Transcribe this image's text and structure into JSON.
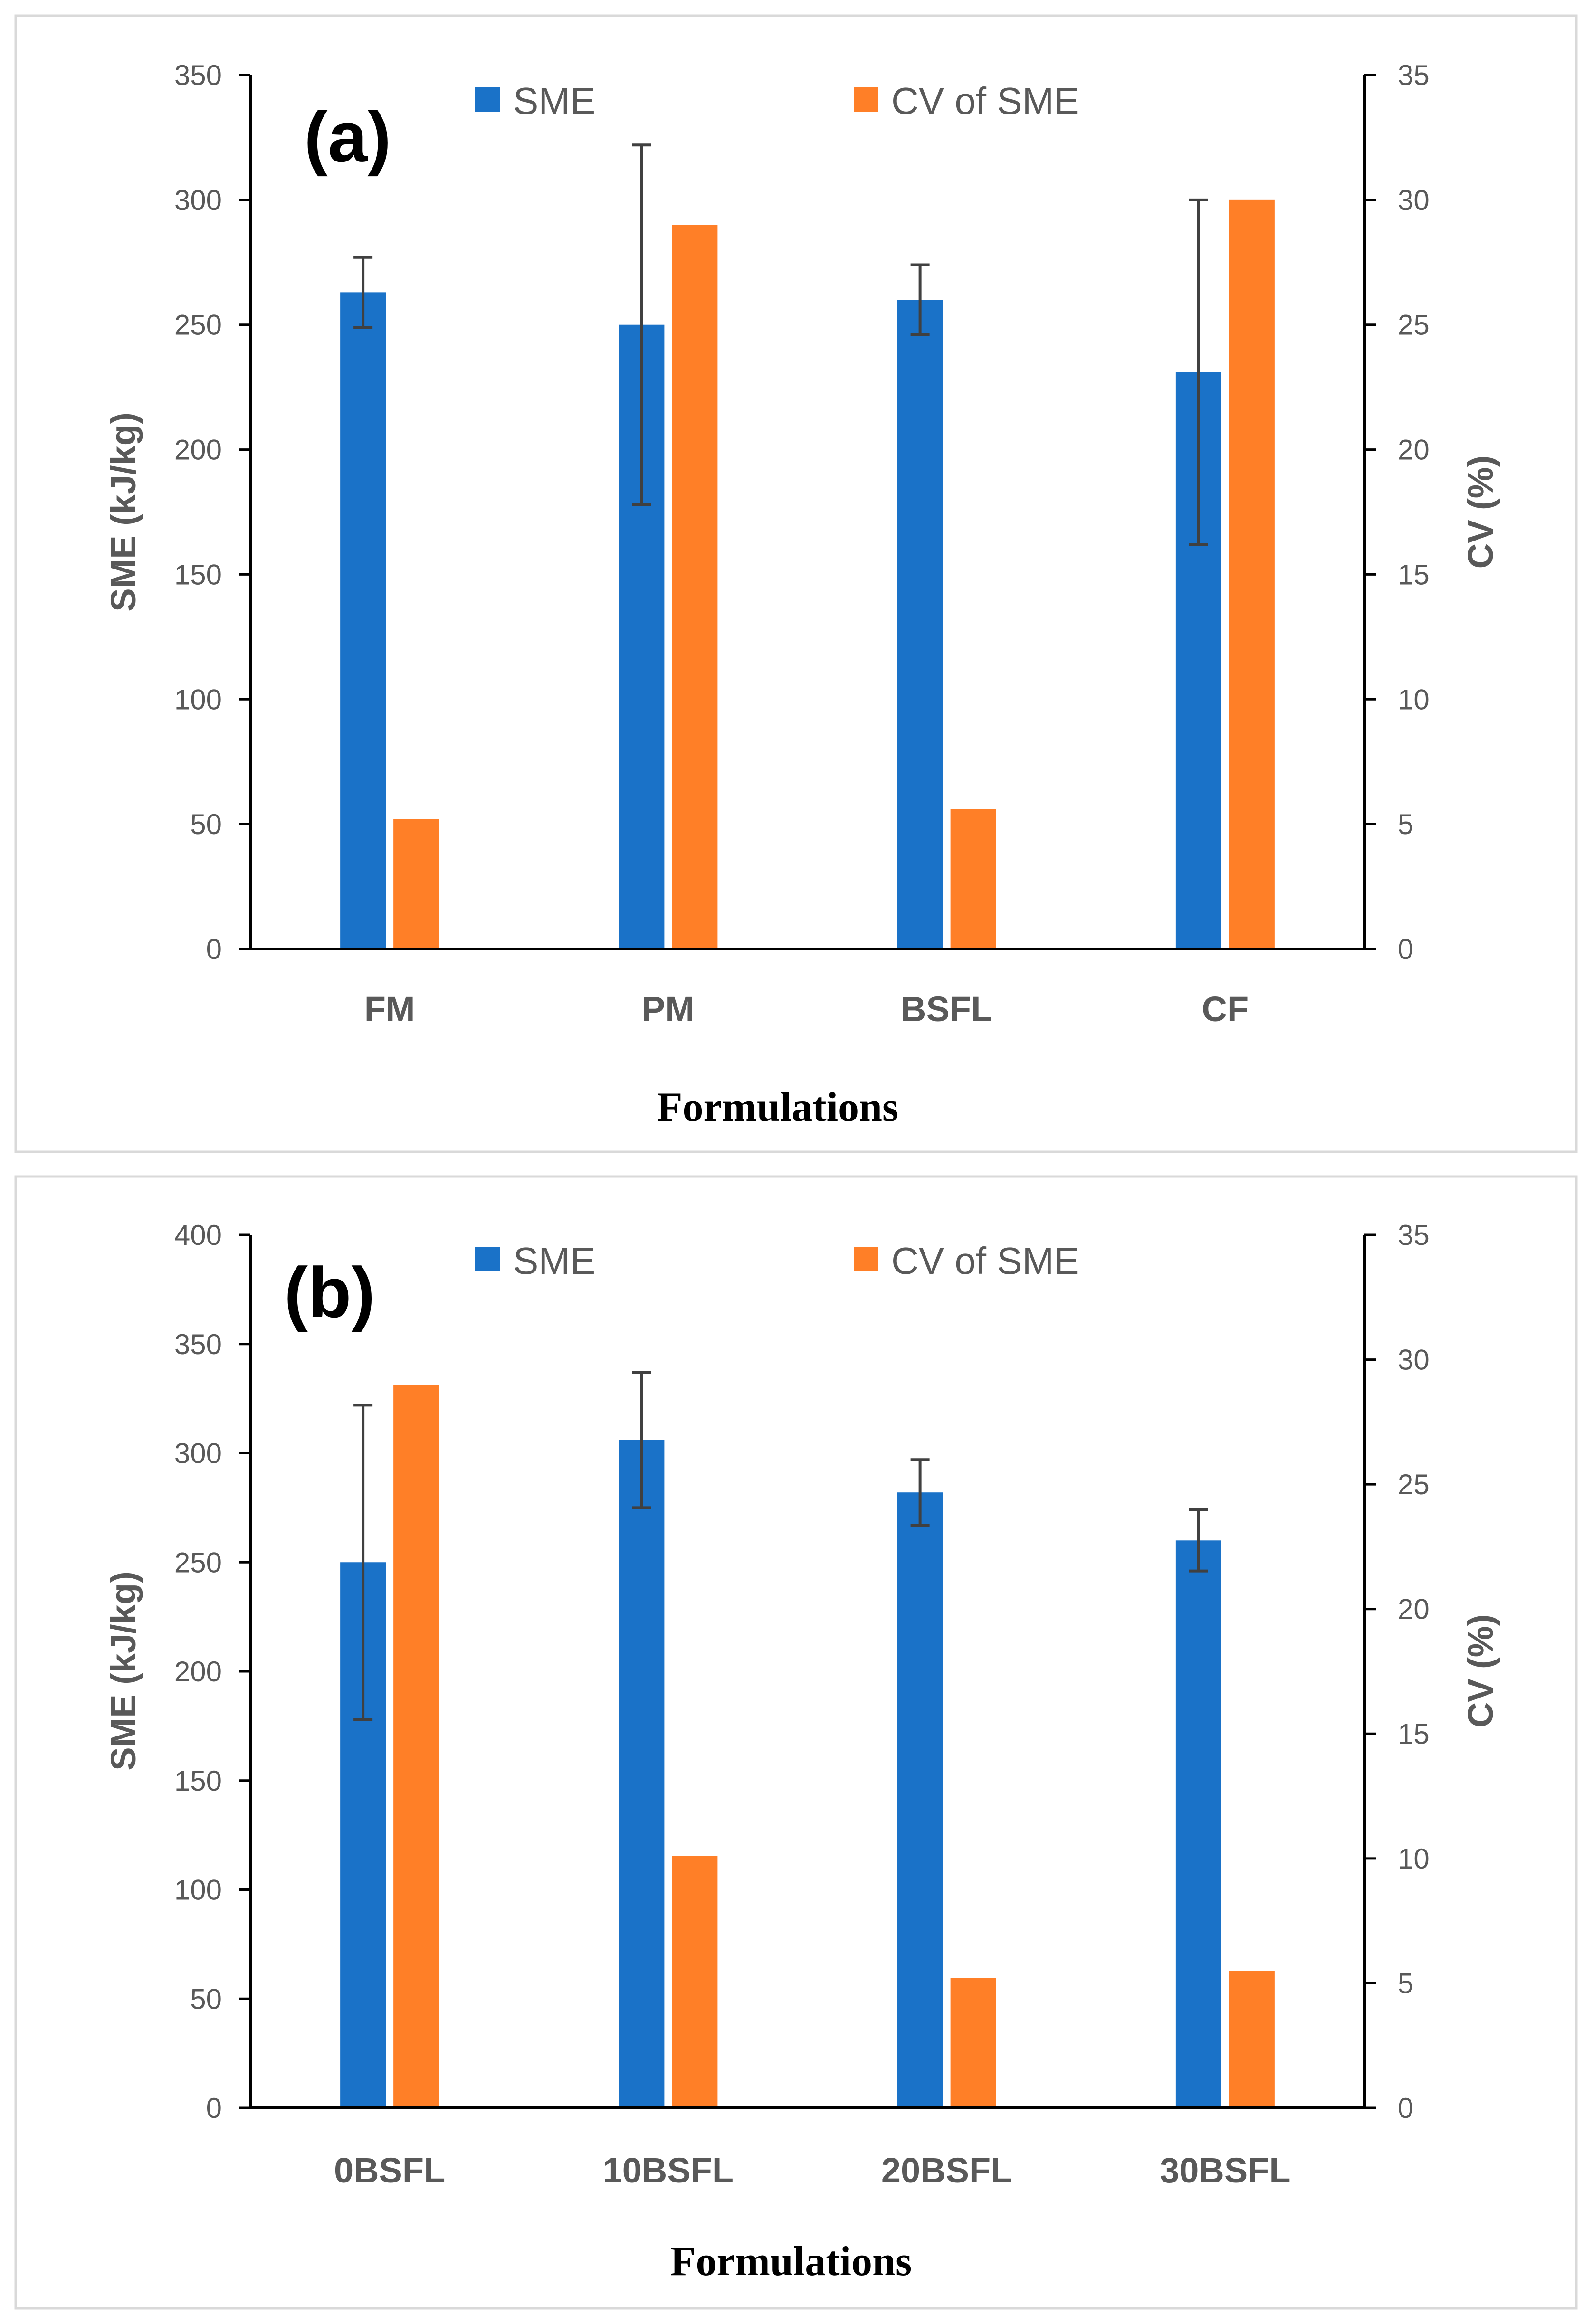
{
  "colors": {
    "sme": "#1A72C8",
    "cv": "#FF7F27",
    "axis": "#000000",
    "text": "#595959",
    "error_bar": "#404040",
    "panel_border": "#d9d9d9"
  },
  "chart_data": [
    {
      "type": "bar",
      "panel_label": "(a)",
      "categories": [
        "FM",
        "PM",
        "BSFL",
        "CF"
      ],
      "xlabel": "Formulations",
      "ylabel": "SME (kJ/kg)",
      "y2label": "CV (%)",
      "ylim": [
        0,
        350
      ],
      "y_ticks": [
        0,
        50,
        100,
        150,
        200,
        250,
        300,
        350
      ],
      "y2lim": [
        0,
        35
      ],
      "y2_ticks": [
        0,
        5,
        10,
        15,
        20,
        25,
        30,
        35
      ],
      "legend_position": "top",
      "series": [
        {
          "name": "SME",
          "axis": "left",
          "values": [
            263,
            250,
            260,
            231
          ],
          "error": [
            14,
            72,
            14,
            69
          ]
        },
        {
          "name": "CV of SME",
          "axis": "right",
          "values": [
            5.2,
            29.0,
            5.6,
            30.0
          ]
        }
      ]
    },
    {
      "type": "bar",
      "panel_label": "(b)",
      "categories": [
        "0BSFL",
        "10BSFL",
        "20BSFL",
        "30BSFL"
      ],
      "xlabel": "Formulations",
      "ylabel": "SME (kJ/kg)",
      "y2label": "CV (%)",
      "ylim": [
        0,
        400
      ],
      "y_ticks": [
        0,
        50,
        100,
        150,
        200,
        250,
        300,
        350,
        400
      ],
      "y2lim": [
        0,
        35
      ],
      "y2_ticks": [
        0,
        5,
        10,
        15,
        20,
        25,
        30,
        35
      ],
      "legend_position": "top",
      "series": [
        {
          "name": "SME",
          "axis": "left",
          "values": [
            250,
            306,
            282,
            260
          ],
          "error": [
            72,
            31,
            15,
            14
          ]
        },
        {
          "name": "CV of SME",
          "axis": "right",
          "values": [
            29.0,
            10.1,
            5.2,
            5.5
          ]
        }
      ]
    }
  ]
}
